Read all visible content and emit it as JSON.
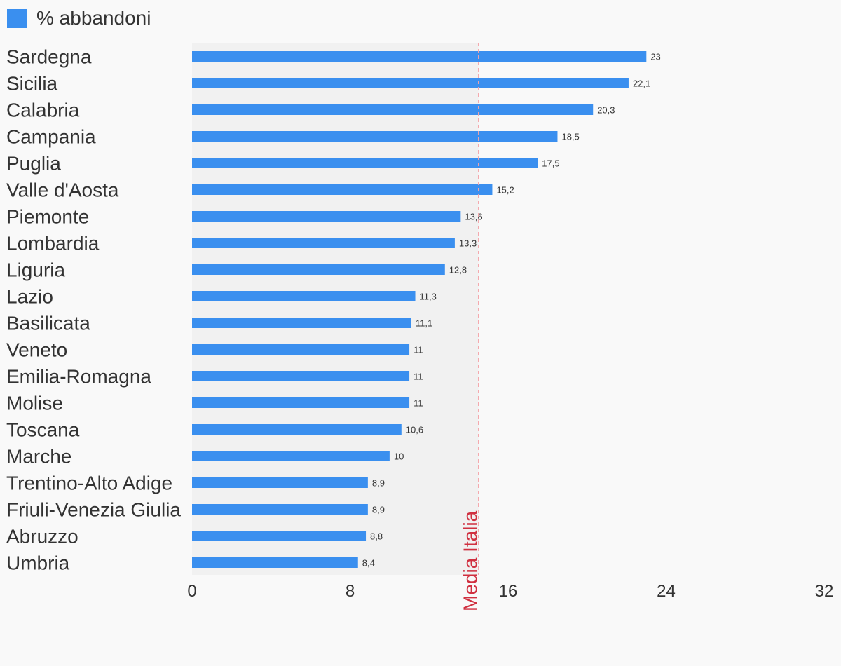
{
  "chart_data": {
    "type": "bar",
    "orientation": "horizontal",
    "categories": [
      "Sardegna",
      "Sicilia",
      "Calabria",
      "Campania",
      "Puglia",
      "Valle d'Aosta",
      "Piemonte",
      "Lombardia",
      "Liguria",
      "Lazio",
      "Basilicata",
      "Veneto",
      "Emilia-Romagna",
      "Molise",
      "Toscana",
      "Marche",
      "Trentino-Alto Adige",
      "Friuli-Venezia Giulia",
      "Abruzzo",
      "Umbria"
    ],
    "series": [
      {
        "name": "% abbandoni",
        "color": "#3a8fef",
        "values": [
          23,
          22.1,
          20.3,
          18.5,
          17.5,
          15.2,
          13.6,
          13.3,
          12.8,
          11.3,
          11.1,
          11,
          11,
          11,
          10.6,
          10,
          8.9,
          8.9,
          8.8,
          8.4
        ],
        "value_labels": [
          "23",
          "22,1",
          "20,3",
          "18,5",
          "17,5",
          "15,2",
          "13,6",
          "13,3",
          "12,8",
          "11,3",
          "11,1",
          "11",
          "11",
          "11",
          "10,6",
          "10",
          "8,9",
          "8,9",
          "8,8",
          "8,4"
        ]
      }
    ],
    "xlim": [
      0,
      32
    ],
    "x_ticks": [
      0,
      8,
      16,
      24,
      32
    ],
    "x_tick_labels": [
      "0",
      "8",
      "16",
      "24",
      "32"
    ],
    "reference_line": {
      "label": "Media Italia",
      "value": 14.5,
      "color": "#d03040"
    },
    "legend_position": "top-left",
    "grid": false
  }
}
